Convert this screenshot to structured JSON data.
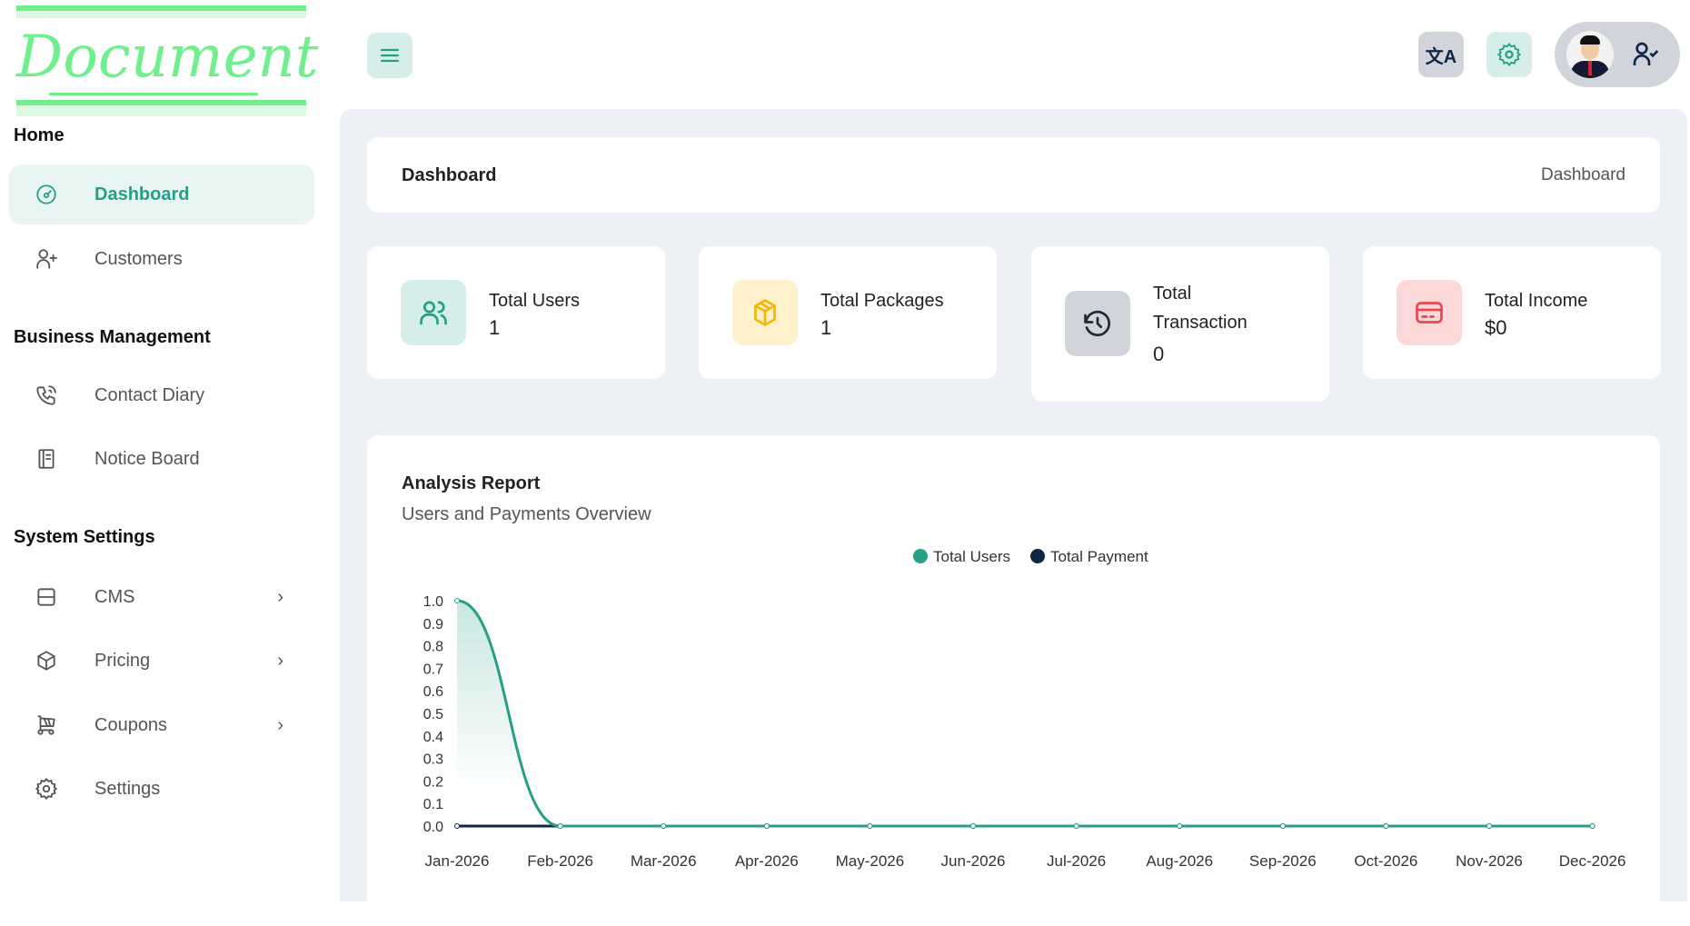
{
  "logo": {
    "text": "Document"
  },
  "sidebar": {
    "sections": [
      {
        "title": "Home"
      },
      {
        "title": "Business Management"
      },
      {
        "title": "System Settings"
      }
    ],
    "items": [
      {
        "label": "Dashboard",
        "icon": "dashboard-icon"
      },
      {
        "label": "Customers",
        "icon": "user-plus-icon"
      },
      {
        "label": "Contact Diary",
        "icon": "phone-icon"
      },
      {
        "label": "Notice Board",
        "icon": "notebook-icon"
      },
      {
        "label": "CMS",
        "icon": "layout-icon"
      },
      {
        "label": "Pricing",
        "icon": "box-icon"
      },
      {
        "label": "Coupons",
        "icon": "cart-icon"
      },
      {
        "label": "Settings",
        "icon": "gear-icon"
      }
    ]
  },
  "header": {
    "menu_icon": "hamburger-icon",
    "translate_icon": "translate-icon",
    "settings_icon": "gear-icon",
    "profile_icon": "user-check-icon"
  },
  "breadcrumb": {
    "title": "Dashboard",
    "current": "Dashboard"
  },
  "stats": [
    {
      "label": "Total Users",
      "value": "1",
      "color": "#26a085",
      "bg": "#d5eeea"
    },
    {
      "label": "Total Packages",
      "value": "1",
      "color": "#f5b800",
      "bg": "#fff1cc"
    },
    {
      "label": "Total Transaction",
      "value": "0",
      "color": "#1d2b3a",
      "bg": "#d1d5db"
    },
    {
      "label": "Total Income",
      "value": "$0",
      "color": "#e5484d",
      "bg": "#fdd8d8"
    }
  ],
  "report": {
    "title": "Analysis Report",
    "subtitle": "Users and Payments Overview"
  },
  "chart_data": {
    "type": "area",
    "categories": [
      "Jan-2026",
      "Feb-2026",
      "Mar-2026",
      "Apr-2026",
      "May-2026",
      "Jun-2026",
      "Jul-2026",
      "Aug-2026",
      "Sep-2026",
      "Oct-2026",
      "Nov-2026",
      "Dec-2026"
    ],
    "series": [
      {
        "name": "Total Users",
        "color": "#26a085",
        "values": [
          1,
          0,
          0,
          0,
          0,
          0,
          0,
          0,
          0,
          0,
          0,
          0
        ]
      },
      {
        "name": "Total Payment",
        "color": "#0f2744",
        "values": [
          0,
          0,
          0,
          0,
          0,
          0,
          0,
          0,
          0,
          0,
          0,
          0
        ]
      }
    ],
    "ylim": [
      0,
      1
    ],
    "yticks": [
      "0.0",
      "0.1",
      "0.2",
      "0.3",
      "0.4",
      "0.5",
      "0.6",
      "0.7",
      "0.8",
      "0.9",
      "1.0"
    ],
    "legend": "top-center"
  }
}
